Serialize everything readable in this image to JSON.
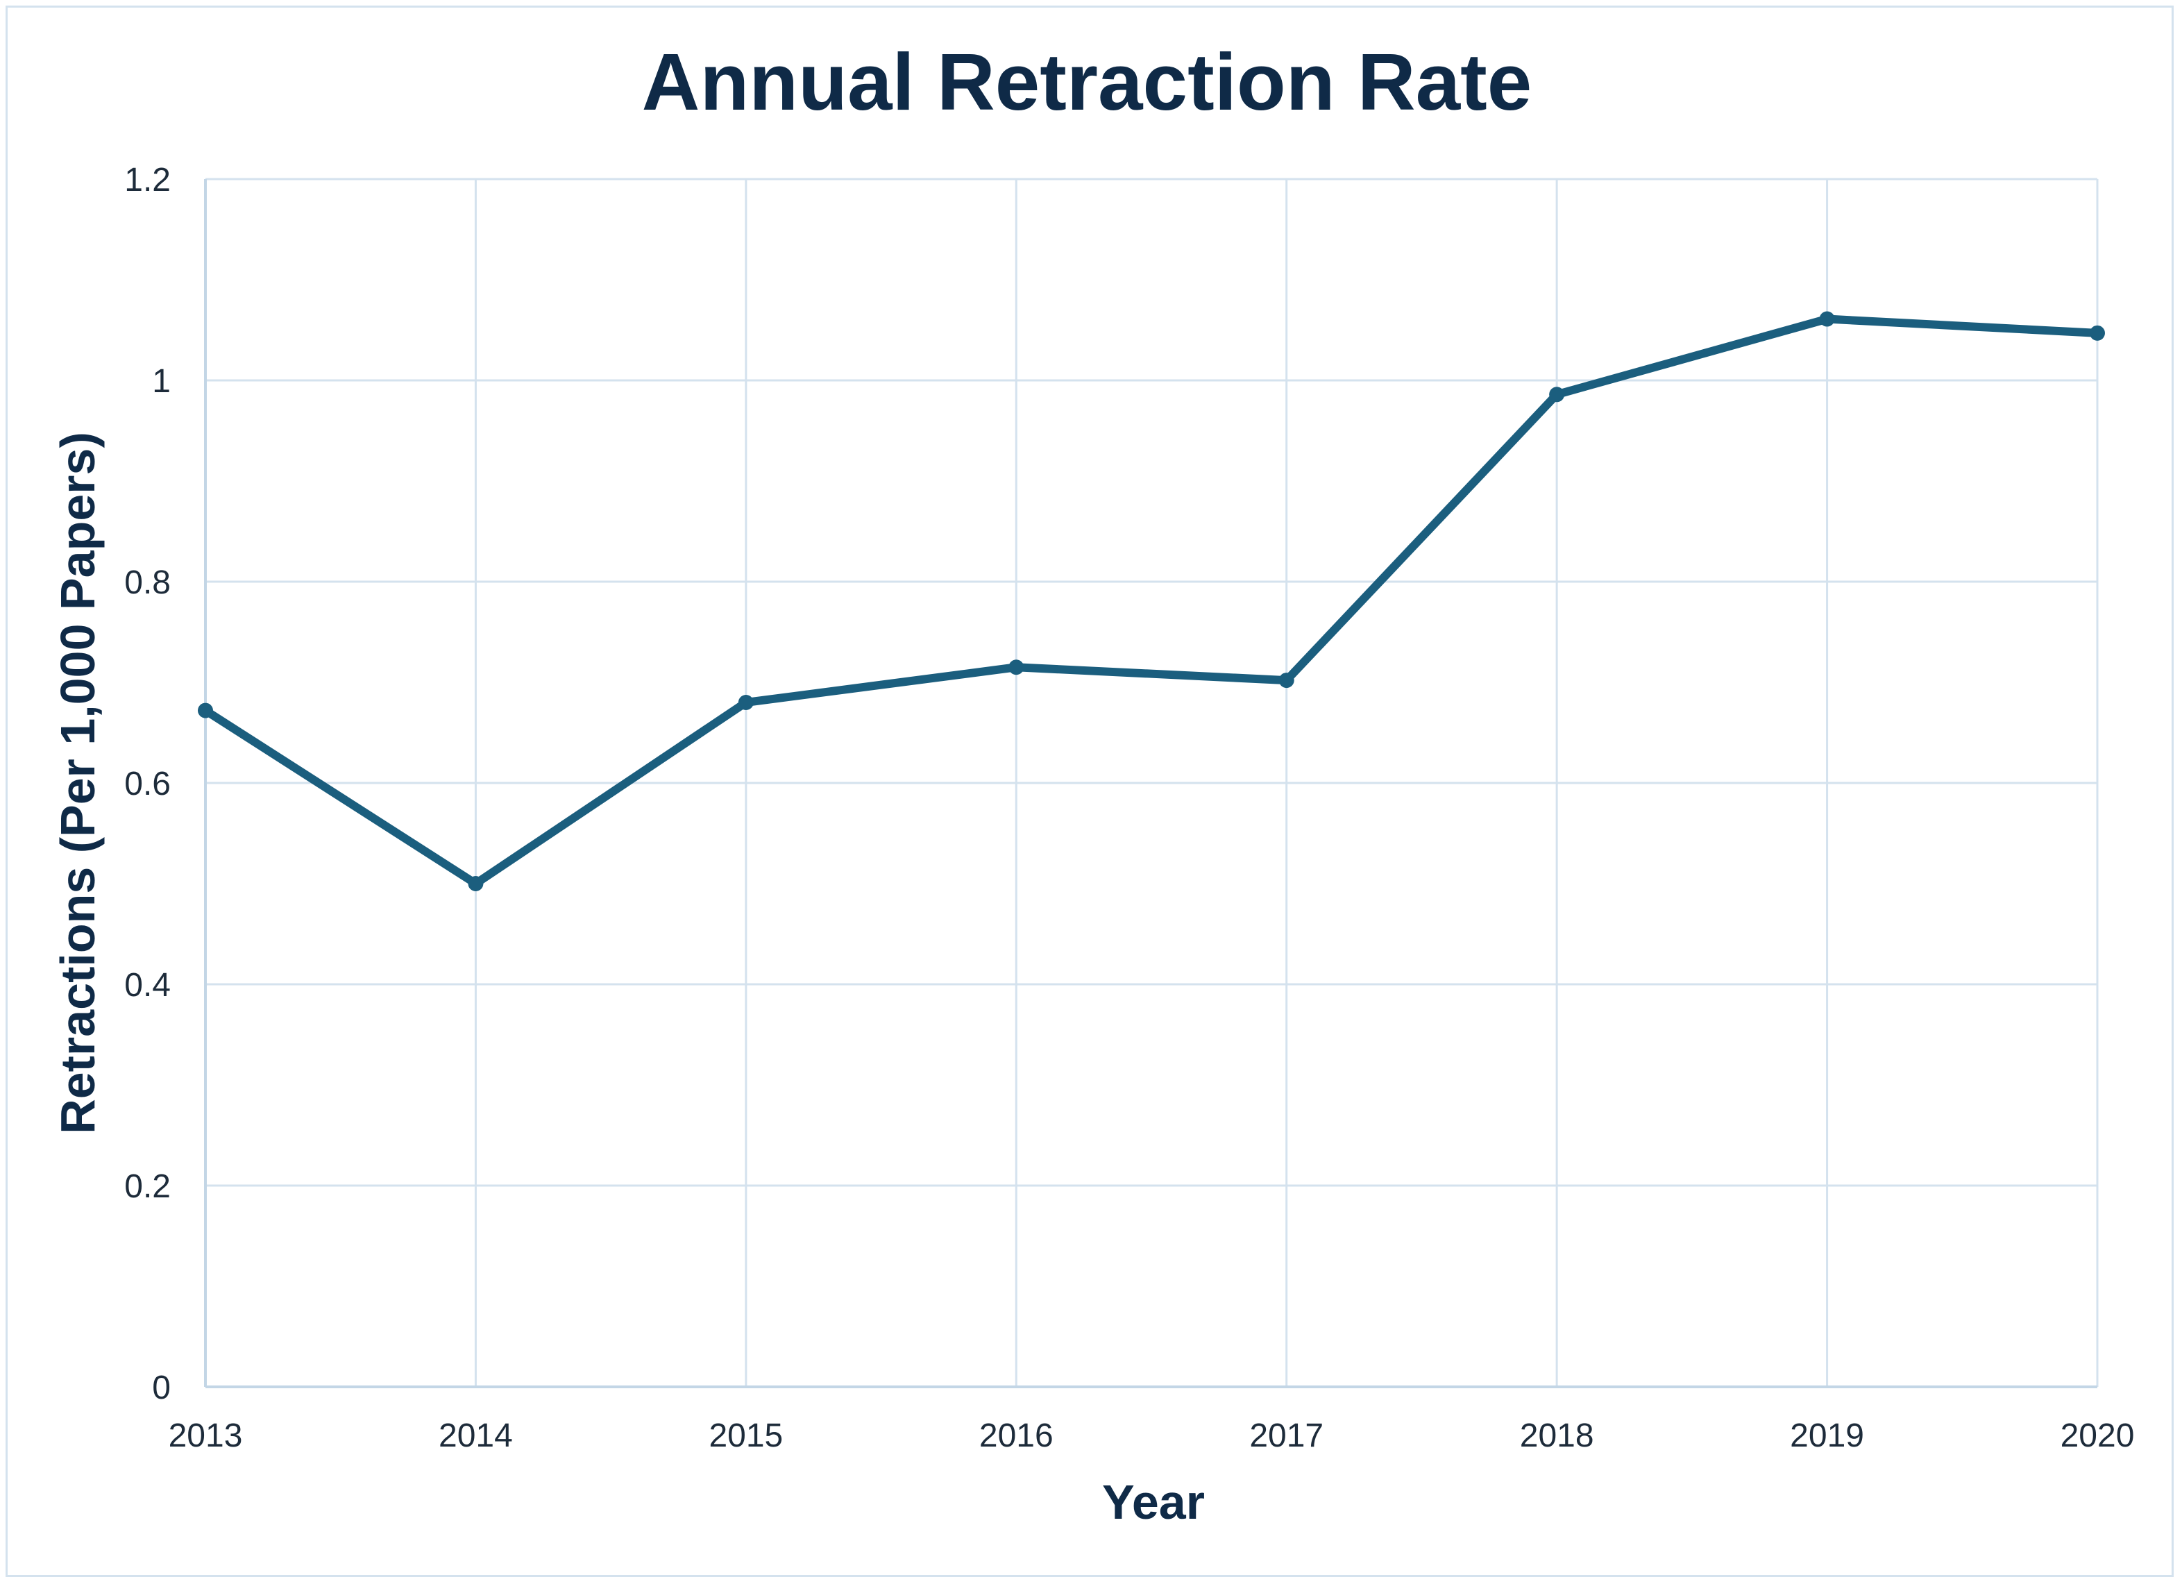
{
  "chart_data": {
    "type": "line",
    "title": "Annual Retraction Rate",
    "xlabel": "Year",
    "ylabel": "Retractions (Per 1,000 Papers)",
    "categories": [
      "2013",
      "2014",
      "2015",
      "2016",
      "2017",
      "2018",
      "2019",
      "2020"
    ],
    "series": [
      {
        "values": [
          0.672,
          0.5,
          0.68,
          0.715,
          0.702,
          0.986,
          1.061,
          1.047
        ]
      }
    ],
    "ylim": [
      0,
      1.2
    ],
    "yticks": [
      "0",
      "0.2",
      "0.4",
      "0.6",
      "0.8",
      "1",
      "1.2"
    ],
    "grid": true,
    "legend": "none",
    "colors": {
      "series": "#1b5e7e",
      "grid": "#d4e2ee",
      "text": "#0f2a47"
    }
  }
}
